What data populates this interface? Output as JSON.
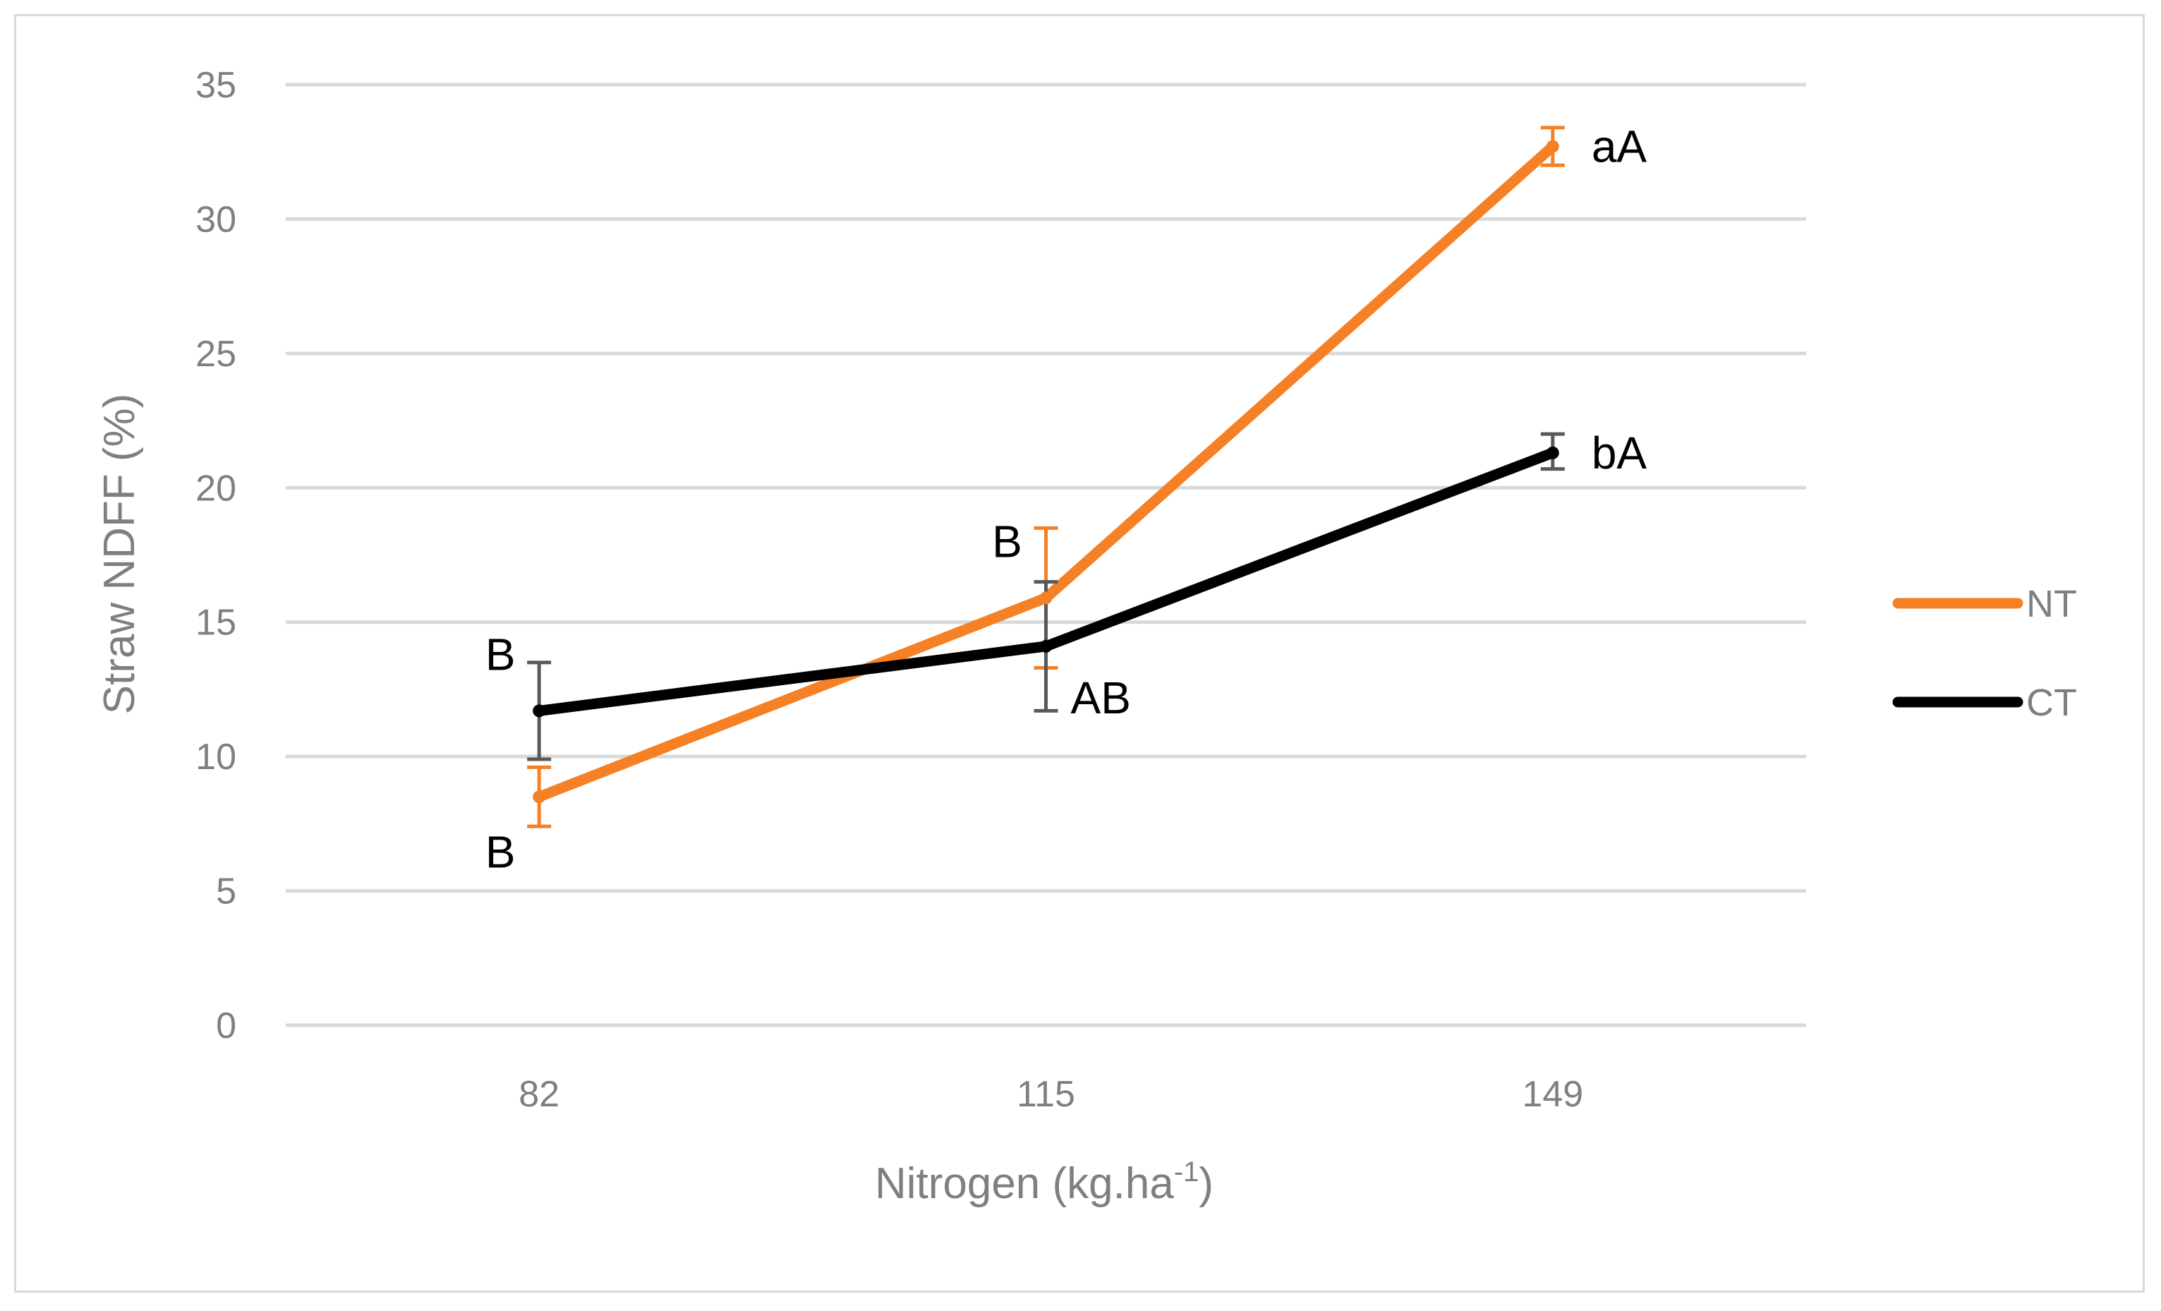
{
  "chart_data": {
    "type": "line",
    "title": "",
    "xlabel": "Nitrogen (kg.ha",
    "xlabel_superscript": "-1",
    "xlabel_suffix": ")",
    "ylabel": "Straw NDFF (%)",
    "ylim": [
      0,
      35
    ],
    "ytick_step": 5,
    "yticks": [
      "0",
      "5",
      "10",
      "15",
      "20",
      "25",
      "30",
      "35"
    ],
    "categories": [
      "82",
      "115",
      "149"
    ],
    "grid": true,
    "legend_position": "right",
    "series": [
      {
        "name": "NT",
        "color": "#f58025",
        "values": [
          8.5,
          15.9,
          32.7
        ],
        "error_low": [
          7.4,
          13.3,
          32.0
        ],
        "error_high": [
          9.6,
          18.5,
          33.4
        ]
      },
      {
        "name": "CT",
        "color": "#000000",
        "values": [
          11.7,
          14.1,
          21.3
        ],
        "error_low": [
          9.9,
          11.7,
          20.7
        ],
        "error_high": [
          13.5,
          16.5,
          22.0
        ]
      }
    ],
    "annotations": [
      {
        "text": "B",
        "series": "CT",
        "index": 0,
        "anchor": "upper-left"
      },
      {
        "text": "B",
        "series": "NT",
        "index": 0,
        "anchor": "lower-left"
      },
      {
        "text": "B",
        "series": "NT",
        "index": 1,
        "anchor": "upper-left"
      },
      {
        "text": "AB",
        "series": "CT",
        "index": 1,
        "anchor": "lower-right"
      },
      {
        "text": "aA",
        "series": "NT",
        "index": 2,
        "anchor": "right"
      },
      {
        "text": "bA",
        "series": "CT",
        "index": 2,
        "anchor": "right"
      }
    ]
  }
}
